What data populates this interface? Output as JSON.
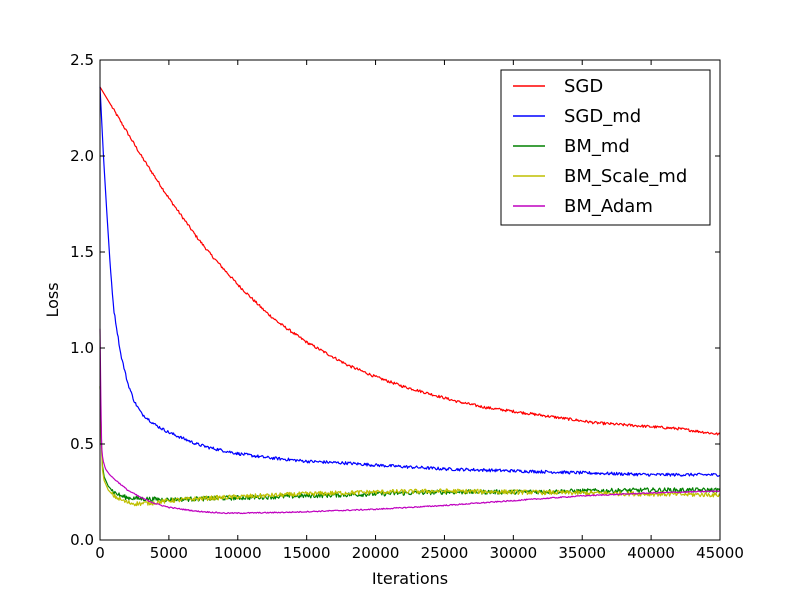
{
  "chart_data": {
    "type": "line",
    "xlabel": "Iterations",
    "ylabel": "Loss",
    "xlim": [
      0,
      45000
    ],
    "ylim": [
      0.0,
      2.5
    ],
    "x_ticks": [
      0,
      5000,
      10000,
      15000,
      20000,
      25000,
      30000,
      35000,
      40000,
      45000
    ],
    "x_tick_labels": [
      "0",
      "5000",
      "10000",
      "15000",
      "20000",
      "25000",
      "30000",
      "35000",
      "40000",
      "45000"
    ],
    "y_ticks": [
      0.0,
      0.5,
      1.0,
      1.5,
      2.0,
      2.5
    ],
    "y_tick_labels": [
      "0.0",
      "0.5",
      "1.0",
      "1.5",
      "2.0",
      "2.5"
    ],
    "grid": false,
    "legend_position": "top-right",
    "series": [
      {
        "name": "SGD",
        "color": "#ff0000",
        "noise": 0.007,
        "x": [
          0,
          1000,
          2000,
          3000,
          4000,
          5000,
          6000,
          7000,
          8000,
          9000,
          10000,
          11000,
          12000,
          13000,
          14000,
          15000,
          16000,
          17000,
          18000,
          19000,
          20000,
          22000,
          24000,
          26000,
          28000,
          30000,
          32000,
          34000,
          36000,
          38000,
          40000,
          42000,
          44000,
          45000
        ],
        "y": [
          2.36,
          2.24,
          2.12,
          2.0,
          1.89,
          1.78,
          1.68,
          1.58,
          1.49,
          1.41,
          1.33,
          1.26,
          1.19,
          1.13,
          1.08,
          1.03,
          0.99,
          0.95,
          0.91,
          0.88,
          0.85,
          0.8,
          0.76,
          0.72,
          0.69,
          0.67,
          0.65,
          0.63,
          0.61,
          0.6,
          0.59,
          0.58,
          0.56,
          0.55
        ]
      },
      {
        "name": "SGD_md",
        "color": "#0000ff",
        "noise": 0.008,
        "x": [
          0,
          250,
          500,
          750,
          1000,
          1500,
          2000,
          2500,
          3000,
          4000,
          5000,
          6000,
          7000,
          8000,
          10000,
          12000,
          15000,
          18000,
          20000,
          25000,
          30000,
          35000,
          40000,
          45000
        ],
        "y": [
          2.36,
          2.0,
          1.7,
          1.42,
          1.2,
          0.97,
          0.82,
          0.72,
          0.66,
          0.6,
          0.56,
          0.53,
          0.5,
          0.48,
          0.45,
          0.43,
          0.41,
          0.4,
          0.39,
          0.37,
          0.36,
          0.35,
          0.34,
          0.34
        ]
      },
      {
        "name": "BM_md",
        "color": "#008000",
        "noise": 0.012,
        "x": [
          0,
          150,
          300,
          600,
          1000,
          1500,
          2000,
          3000,
          5000,
          10000,
          15000,
          20000,
          25000,
          30000,
          35000,
          40000,
          45000
        ],
        "y": [
          0.8,
          0.4,
          0.33,
          0.28,
          0.25,
          0.23,
          0.22,
          0.215,
          0.21,
          0.22,
          0.23,
          0.24,
          0.25,
          0.25,
          0.255,
          0.26,
          0.26
        ]
      },
      {
        "name": "BM_Scale_md",
        "color": "#bfbf00",
        "noise": 0.012,
        "x": [
          0,
          150,
          300,
          600,
          1000,
          1500,
          2000,
          2500,
          3000,
          4000,
          5000,
          7000,
          10000,
          15000,
          20000,
          25000,
          30000,
          35000,
          40000,
          45000
        ],
        "y": [
          0.8,
          0.38,
          0.31,
          0.26,
          0.23,
          0.21,
          0.195,
          0.19,
          0.19,
          0.195,
          0.205,
          0.215,
          0.225,
          0.24,
          0.25,
          0.255,
          0.25,
          0.245,
          0.24,
          0.235
        ]
      },
      {
        "name": "BM_Adam",
        "color": "#bf00bf",
        "noise": 0.003,
        "x": [
          0,
          100,
          200,
          400,
          700,
          1000,
          1500,
          2000,
          3000,
          4000,
          5000,
          6000,
          7000,
          8000,
          9000,
          10000,
          12000,
          14000,
          16000,
          18000,
          20000,
          25000,
          30000,
          35000,
          40000,
          45000
        ],
        "y": [
          1.1,
          0.5,
          0.42,
          0.37,
          0.34,
          0.32,
          0.29,
          0.26,
          0.22,
          0.19,
          0.17,
          0.16,
          0.15,
          0.145,
          0.14,
          0.14,
          0.142,
          0.145,
          0.15,
          0.155,
          0.16,
          0.18,
          0.205,
          0.23,
          0.245,
          0.255
        ]
      }
    ]
  }
}
